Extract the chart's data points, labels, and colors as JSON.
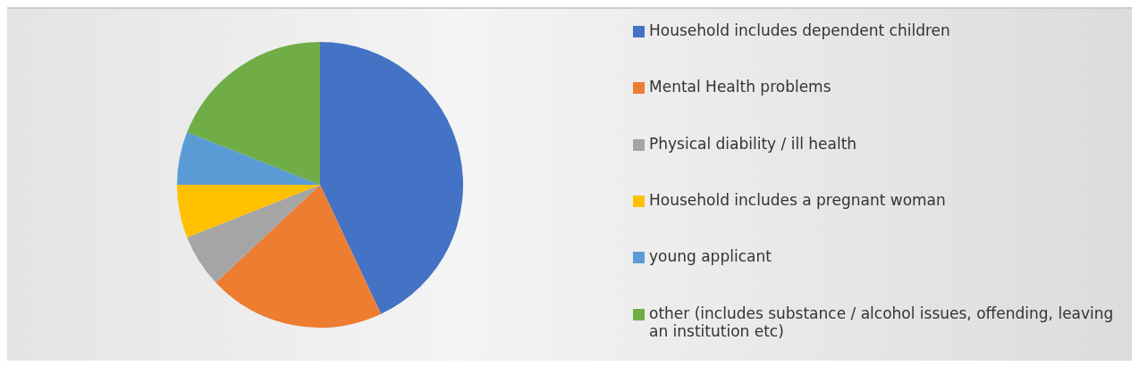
{
  "chart_data": {
    "type": "pie",
    "categories": [
      "Household includes dependent children",
      "Mental Health problems",
      "Physical diability / ill health",
      "Household includes a pregnant woman",
      "young applicant",
      "other (includes substance / alcohol issues, offending, leaving an institution etc)"
    ],
    "values": [
      43,
      20,
      6,
      6,
      6,
      19
    ],
    "colors": [
      "#4472c4",
      "#ed7d31",
      "#a5a5a5",
      "#ffc000",
      "#5b9bd5",
      "#70ad47"
    ],
    "legend": "right"
  }
}
